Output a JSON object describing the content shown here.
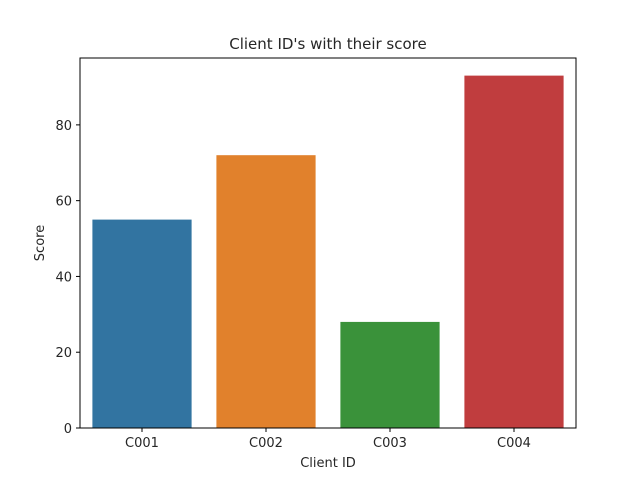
{
  "chart_data": {
    "type": "bar",
    "title": "Client ID's with their score",
    "xlabel": "Client ID",
    "ylabel": "Score",
    "categories": [
      "C001",
      "C002",
      "C003",
      "C004"
    ],
    "values": [
      55,
      72,
      28,
      93
    ],
    "colors": [
      "#3274a1",
      "#e1812c",
      "#3a923a",
      "#c03d3e"
    ],
    "ylim": [
      0,
      97.65
    ],
    "yticks": [
      0,
      20,
      40,
      60,
      80
    ],
    "grid": false,
    "legend": "none"
  }
}
